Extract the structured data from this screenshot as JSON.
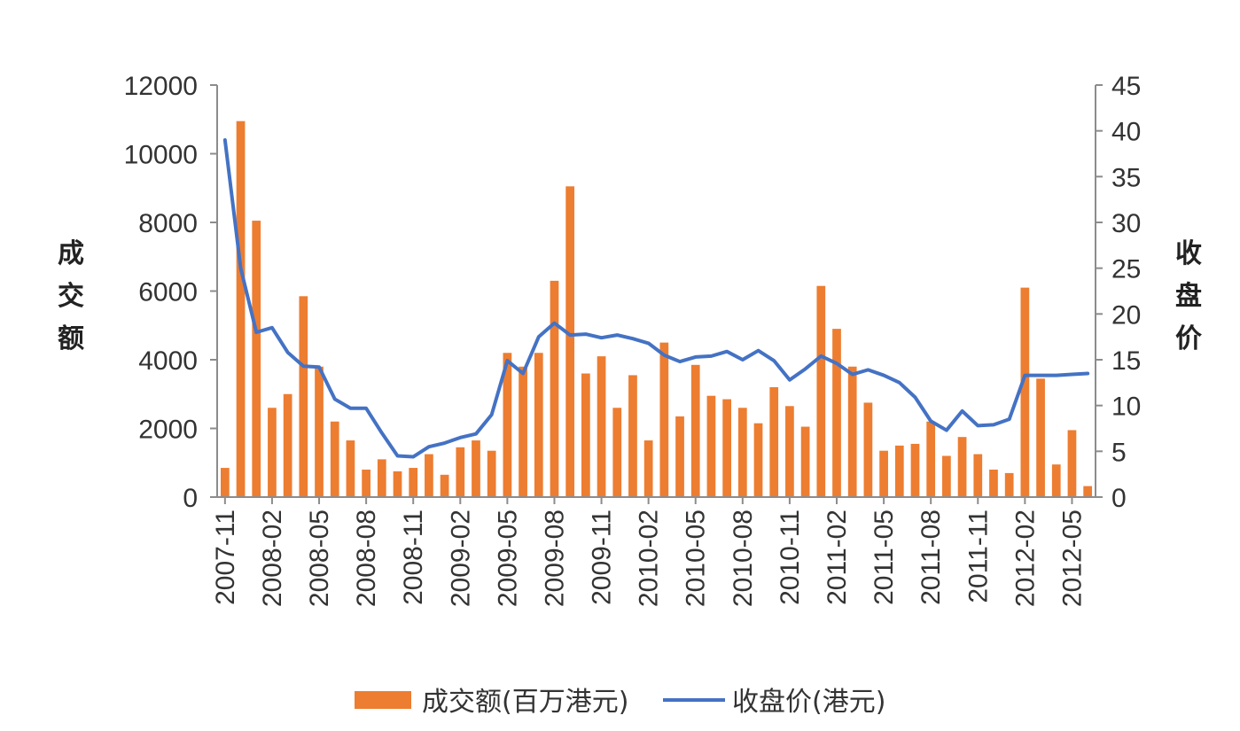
{
  "chart_data": {
    "type": "bar",
    "categories": [
      "2007-11",
      "2007-12",
      "2008-01",
      "2008-02",
      "2008-03",
      "2008-04",
      "2008-05",
      "2008-06",
      "2008-07",
      "2008-08",
      "2008-09",
      "2008-10",
      "2008-11",
      "2008-12",
      "2009-01",
      "2009-02",
      "2009-03",
      "2009-04",
      "2009-05",
      "2009-06",
      "2009-07",
      "2009-08",
      "2009-09",
      "2009-10",
      "2009-11",
      "2009-12",
      "2010-01",
      "2010-02",
      "2010-03",
      "2010-04",
      "2010-05",
      "2010-06",
      "2010-07",
      "2010-08",
      "2010-09",
      "2010-10",
      "2010-11",
      "2010-12",
      "2011-01",
      "2011-02",
      "2011-03",
      "2011-04",
      "2011-05",
      "2011-06",
      "2011-07",
      "2011-08",
      "2011-09",
      "2011-10",
      "2011-11",
      "2011-12",
      "2012-01",
      "2012-02",
      "2012-03",
      "2012-04",
      "2012-05",
      "2012-06"
    ],
    "x_tick_labels": [
      "2007-11",
      "2008-02",
      "2008-05",
      "2008-08",
      "2008-11",
      "2009-02",
      "2009-05",
      "2009-08",
      "2009-11",
      "2010-02",
      "2010-05",
      "2010-08",
      "2010-11",
      "2011-02",
      "2011-05",
      "2011-08",
      "2011-11",
      "2012-02",
      "2012-05"
    ],
    "series": [
      {
        "name": "成交额(百万港元)",
        "type": "bar",
        "axis": "left",
        "color": "#ED7D31",
        "values": [
          850,
          10950,
          8050,
          2600,
          3000,
          5850,
          3800,
          2200,
          1650,
          800,
          1100,
          750,
          850,
          1250,
          650,
          1450,
          1650,
          1350,
          4200,
          3800,
          4200,
          6300,
          9050,
          3600,
          4100,
          2600,
          3550,
          1650,
          4500,
          2350,
          3850,
          2950,
          2850,
          2600,
          2150,
          3200,
          2650,
          2050,
          6150,
          4900,
          3800,
          2750,
          1350,
          1500,
          1550,
          2200,
          1200,
          1750,
          1250,
          800,
          700,
          6100,
          3450,
          950,
          1950,
          320
        ]
      },
      {
        "name": "收盘价(港元)",
        "type": "line",
        "axis": "right",
        "color": "#4472C4",
        "values": [
          39.0,
          25.0,
          18.0,
          18.5,
          15.8,
          14.3,
          14.2,
          10.7,
          9.7,
          9.7,
          7.0,
          4.5,
          4.4,
          5.5,
          5.9,
          6.5,
          6.9,
          9.0,
          14.9,
          13.5,
          17.5,
          19.0,
          17.7,
          17.8,
          17.4,
          17.7,
          17.3,
          16.8,
          15.5,
          14.8,
          15.3,
          15.4,
          15.9,
          15.0,
          16.0,
          14.9,
          12.8,
          14.0,
          15.4,
          14.6,
          13.4,
          13.9,
          13.3,
          12.5,
          10.9,
          8.3,
          7.3,
          9.4,
          7.8,
          7.9,
          8.5,
          13.3,
          13.3,
          13.3,
          13.4,
          13.5
        ]
      }
    ],
    "y_left": {
      "label": "成交额",
      "ylim": [
        0,
        12000
      ],
      "ticks": [
        "0",
        "2000",
        "4000",
        "6000",
        "8000",
        "10000",
        "12000"
      ]
    },
    "y_right": {
      "label": "收盘价",
      "ylim": [
        0,
        45
      ],
      "ticks": [
        "0",
        "5",
        "10",
        "15",
        "20",
        "25",
        "30",
        "35",
        "40",
        "45"
      ]
    },
    "legend": {
      "position": "bottom"
    },
    "grid": false
  }
}
